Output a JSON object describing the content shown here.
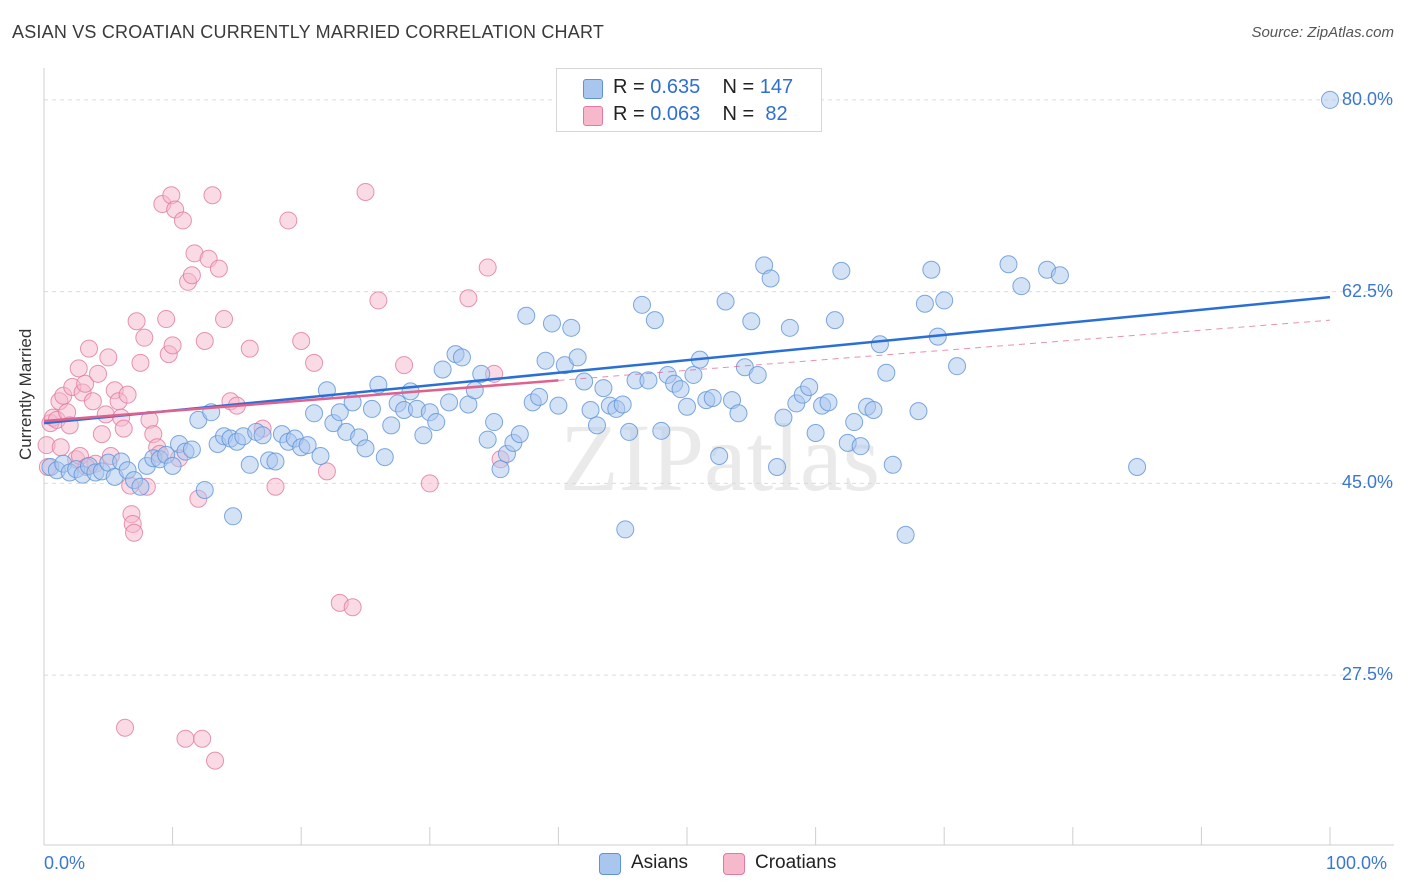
{
  "title": "ASIAN VS CROATIAN CURRENTLY MARRIED CORRELATION CHART",
  "source": "Source: ZipAtlas.com",
  "watermark": "ZIPatlas",
  "colors": {
    "asian": "#a9c6ee",
    "asian_stroke": "#5e93d8",
    "asian_line": "#2a6fd6",
    "croatian": "#f6b8cb",
    "croatian_stroke": "#e07aa0",
    "croatian_line": "#e0608e",
    "value_text": "#2f6fd0"
  },
  "legend": {
    "asian": {
      "r_label": "R = ",
      "r_value": "0.635",
      "n_label": "N = ",
      "n_value": "147"
    },
    "croatian": {
      "r_label": "R = ",
      "r_value": "0.063",
      "n_label": "N = ",
      "n_value": " 82"
    }
  },
  "bottom_legend": {
    "asian": "Asians",
    "croatian": "Croatians"
  },
  "chart_data": {
    "type": "scatter",
    "title": "ASIAN VS CROATIAN CURRENTLY MARRIED CORRELATION CHART",
    "xlabel": "",
    "ylabel": "Currently Married",
    "xlim": [
      0,
      100
    ],
    "ylim": [
      12,
      82
    ],
    "x_tick_labels": [
      "0.0%",
      "100.0%"
    ],
    "y_ticks": [
      27.5,
      45.0,
      62.5,
      80.0
    ],
    "y_tick_labels": [
      "27.5%",
      "45.0%",
      "62.5%",
      "80.0%"
    ],
    "grid": true,
    "series": [
      {
        "name": "Asians",
        "r": 0.635,
        "n": 147,
        "trend": {
          "x": [
            0,
            100
          ],
          "y": [
            50.5,
            62.0
          ],
          "style": "solid"
        },
        "points": [
          [
            0.5,
            46.5
          ],
          [
            1,
            46.2
          ],
          [
            1.5,
            46.8
          ],
          [
            2,
            46
          ],
          [
            2.5,
            46.3
          ],
          [
            3,
            45.8
          ],
          [
            3.5,
            46.6
          ],
          [
            4,
            46
          ],
          [
            4.5,
            46.1
          ],
          [
            5,
            46.9
          ],
          [
            5.5,
            45.6
          ],
          [
            6,
            47
          ],
          [
            6.5,
            46.2
          ],
          [
            7,
            45.3
          ],
          [
            7.5,
            44.7
          ],
          [
            8,
            46.6
          ],
          [
            8.5,
            47.3
          ],
          [
            9,
            47.2
          ],
          [
            9.5,
            47.6
          ],
          [
            10,
            46.6
          ],
          [
            10.5,
            48.6
          ],
          [
            11,
            47.9
          ],
          [
            11.5,
            48.1
          ],
          [
            12,
            50.8
          ],
          [
            12.5,
            44.4
          ],
          [
            13,
            51.5
          ],
          [
            13.5,
            48.6
          ],
          [
            14,
            49.3
          ],
          [
            14.5,
            49.1
          ],
          [
            14.7,
            42.0
          ],
          [
            15,
            48.8
          ],
          [
            15.5,
            49.3
          ],
          [
            16,
            46.7
          ],
          [
            16.5,
            49.7
          ],
          [
            17,
            49.4
          ],
          [
            17.5,
            47.1
          ],
          [
            18,
            47.0
          ],
          [
            18.5,
            49.5
          ],
          [
            19,
            48.8
          ],
          [
            19.5,
            49.1
          ],
          [
            20,
            48.3
          ],
          [
            20.5,
            48.5
          ],
          [
            21,
            51.4
          ],
          [
            21.5,
            47.5
          ],
          [
            22,
            53.5
          ],
          [
            22.5,
            50.5
          ],
          [
            23,
            51.5
          ],
          [
            23.5,
            49.7
          ],
          [
            24,
            52.4
          ],
          [
            24.5,
            49.2
          ],
          [
            25,
            48.2
          ],
          [
            25.5,
            51.8
          ],
          [
            26,
            54.0
          ],
          [
            26.5,
            47.4
          ],
          [
            27,
            50.3
          ],
          [
            27.5,
            52.3
          ],
          [
            28,
            51.7
          ],
          [
            28.5,
            53.4
          ],
          [
            29,
            51.8
          ],
          [
            29.5,
            49.4
          ],
          [
            30,
            51.5
          ],
          [
            30.5,
            50.6
          ],
          [
            31,
            55.4
          ],
          [
            31.5,
            52.4
          ],
          [
            32,
            56.8
          ],
          [
            32.5,
            56.5
          ],
          [
            33,
            52.2
          ],
          [
            33.5,
            53.5
          ],
          [
            34,
            55.0
          ],
          [
            34.5,
            49.0
          ],
          [
            35,
            50.6
          ],
          [
            35.5,
            46.3
          ],
          [
            36,
            47.7
          ],
          [
            36.5,
            48.7
          ],
          [
            37,
            49.5
          ],
          [
            37.5,
            60.3
          ],
          [
            38,
            52.4
          ],
          [
            38.5,
            52.9
          ],
          [
            39,
            56.2
          ],
          [
            39.5,
            59.6
          ],
          [
            40,
            52.1
          ],
          [
            40.5,
            55.8
          ],
          [
            41,
            59.2
          ],
          [
            41.5,
            56.5
          ],
          [
            42,
            54.3
          ],
          [
            42.5,
            51.7
          ],
          [
            43,
            50.3
          ],
          [
            43.5,
            53.7
          ],
          [
            44,
            52.1
          ],
          [
            44.5,
            51.8
          ],
          [
            45,
            52.2
          ],
          [
            45.5,
            49.7
          ],
          [
            45.2,
            40.8
          ],
          [
            46,
            54.4
          ],
          [
            46.5,
            61.3
          ],
          [
            47,
            54.4
          ],
          [
            47.5,
            59.9
          ],
          [
            48,
            49.8
          ],
          [
            48.5,
            54.9
          ],
          [
            49,
            54.1
          ],
          [
            49.5,
            53.6
          ],
          [
            50,
            52.0
          ],
          [
            50.5,
            54.9
          ],
          [
            51,
            56.3
          ],
          [
            51.5,
            52.6
          ],
          [
            52,
            52.8
          ],
          [
            52.5,
            47.5
          ],
          [
            53,
            61.6
          ],
          [
            53.5,
            52.6
          ],
          [
            54,
            51.4
          ],
          [
            54.5,
            55.6
          ],
          [
            55,
            59.8
          ],
          [
            55.5,
            54.9
          ],
          [
            56,
            64.9
          ],
          [
            56.5,
            63.7
          ],
          [
            57,
            46.5
          ],
          [
            57.5,
            51.0
          ],
          [
            58,
            59.2
          ],
          [
            58.5,
            52.3
          ],
          [
            59,
            53.1
          ],
          [
            59.5,
            53.8
          ],
          [
            60,
            49.6
          ],
          [
            60.5,
            52.1
          ],
          [
            61,
            52.4
          ],
          [
            61.5,
            59.9
          ],
          [
            62,
            64.4
          ],
          [
            62.5,
            48.7
          ],
          [
            63,
            50.6
          ],
          [
            63.5,
            48.4
          ],
          [
            64,
            52.0
          ],
          [
            64.5,
            51.7
          ],
          [
            65,
            57.7
          ],
          [
            65.5,
            55.1
          ],
          [
            66,
            46.7
          ],
          [
            67,
            40.3
          ],
          [
            68,
            51.6
          ],
          [
            68.5,
            61.4
          ],
          [
            69,
            64.5
          ],
          [
            69.5,
            58.4
          ],
          [
            70,
            61.7
          ],
          [
            71,
            55.7
          ],
          [
            75,
            65.0
          ],
          [
            76,
            63.0
          ],
          [
            78,
            64.5
          ],
          [
            79,
            64.0
          ],
          [
            85,
            46.5
          ],
          [
            100,
            80.0
          ]
        ]
      },
      {
        "name": "Croatians",
        "r": 0.063,
        "n": 82,
        "trend": {
          "x": [
            0,
            40
          ],
          "y": [
            50.7,
            54.4
          ],
          "style": "solid"
        },
        "trend_extension": {
          "x": [
            40,
            100
          ],
          "y": [
            54.4,
            59.9
          ],
          "style": "dashed"
        },
        "points": [
          [
            0.2,
            48.5
          ],
          [
            0.3,
            46.5
          ],
          [
            0.5,
            50.5
          ],
          [
            0.7,
            51
          ],
          [
            1,
            50.8
          ],
          [
            1.2,
            52.5
          ],
          [
            1.5,
            53
          ],
          [
            1.8,
            51.5
          ],
          [
            2,
            50.3
          ],
          [
            2.2,
            53.8
          ],
          [
            2.5,
            47.2
          ],
          [
            2.7,
            55.5
          ],
          [
            3,
            53.3
          ],
          [
            3.2,
            54.1
          ],
          [
            3.5,
            57.3
          ],
          [
            3.8,
            52.5
          ],
          [
            4,
            46.8
          ],
          [
            4.2,
            55
          ],
          [
            4.5,
            49.5
          ],
          [
            4.8,
            51.3
          ],
          [
            5,
            56.5
          ],
          [
            5.2,
            47.5
          ],
          [
            5.5,
            53.5
          ],
          [
            5.8,
            52.5
          ],
          [
            6,
            51
          ],
          [
            6.2,
            50
          ],
          [
            6.5,
            53.1
          ],
          [
            6.7,
            44.8
          ],
          [
            6.8,
            42.2
          ],
          [
            6.9,
            41.3
          ],
          [
            7,
            40.5
          ],
          [
            7.2,
            59.8
          ],
          [
            7.5,
            56
          ],
          [
            7.8,
            58.3
          ],
          [
            8,
            44.7
          ],
          [
            8.2,
            50.8
          ],
          [
            8.5,
            49.5
          ],
          [
            8.8,
            48.3
          ],
          [
            9,
            47.7
          ],
          [
            9.2,
            70.5
          ],
          [
            9.5,
            60.0
          ],
          [
            9.7,
            56.8
          ],
          [
            9.9,
            71.3
          ],
          [
            10,
            57.6
          ],
          [
            10.2,
            70.0
          ],
          [
            10.5,
            47.3
          ],
          [
            10.8,
            69.0
          ],
          [
            11,
            21.7
          ],
          [
            11.2,
            63.4
          ],
          [
            11.5,
            64.0
          ],
          [
            11.7,
            66.0
          ],
          [
            12,
            43.6
          ],
          [
            12.3,
            21.7
          ],
          [
            12.5,
            58.0
          ],
          [
            12.8,
            65.5
          ],
          [
            13.1,
            71.3
          ],
          [
            13.3,
            19.7
          ],
          [
            13.6,
            64.6
          ],
          [
            14,
            60.0
          ],
          [
            14.5,
            52.5
          ],
          [
            15,
            52.1
          ],
          [
            16,
            57.3
          ],
          [
            17,
            50.0
          ],
          [
            18,
            44.7
          ],
          [
            19,
            69.0
          ],
          [
            20,
            58.0
          ],
          [
            21,
            56.0
          ],
          [
            22,
            46.1
          ],
          [
            23,
            34.1
          ],
          [
            24,
            33.7
          ],
          [
            25,
            71.6
          ],
          [
            26,
            61.7
          ],
          [
            28,
            55.8
          ],
          [
            30,
            45.0
          ],
          [
            33,
            61.9
          ],
          [
            34.5,
            64.7
          ],
          [
            35,
            55.0
          ],
          [
            35.5,
            47.2
          ],
          [
            1.3,
            48.3
          ],
          [
            6.3,
            22.7
          ],
          [
            2.8,
            47.5
          ],
          [
            3.3,
            46.5
          ]
        ]
      }
    ]
  }
}
